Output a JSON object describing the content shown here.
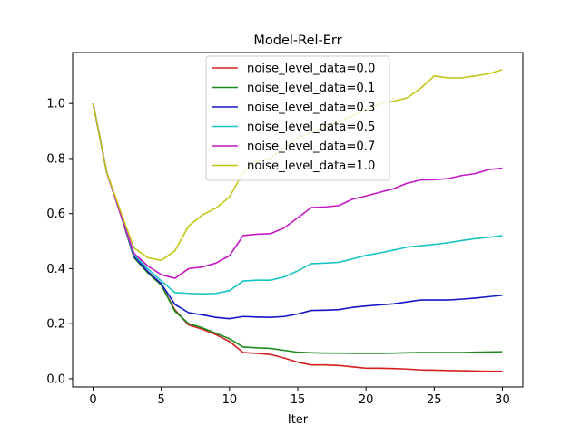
{
  "chart_data": {
    "type": "line",
    "title": "Model-Rel-Err",
    "xlabel": "Iter",
    "ylabel": "",
    "xlim": [
      -1.5,
      31.5
    ],
    "ylim": [
      -0.03,
      1.185
    ],
    "xticks": [
      0,
      5,
      10,
      15,
      20,
      25,
      30
    ],
    "xtick_labels": [
      "0",
      "5",
      "10",
      "15",
      "20",
      "25",
      "30"
    ],
    "yticks": [
      0.0,
      0.2,
      0.4,
      0.6,
      0.8,
      1.0
    ],
    "ytick_labels": [
      "0.0",
      "0.2",
      "0.4",
      "0.6",
      "0.8",
      "1.0"
    ],
    "grid": false,
    "legend_position": "top-center",
    "x": [
      0,
      1,
      2,
      3,
      4,
      5,
      6,
      7,
      8,
      9,
      10,
      11,
      12,
      13,
      14,
      15,
      16,
      17,
      18,
      19,
      20,
      21,
      22,
      23,
      24,
      25,
      26,
      27,
      28,
      29,
      30
    ],
    "series": [
      {
        "name": "noise_level_data=0.0",
        "color": "#d62020",
        "values": [
          1.0,
          0.75,
          0.6,
          0.44,
          0.385,
          0.34,
          0.25,
          0.195,
          0.18,
          0.16,
          0.135,
          0.095,
          0.092,
          0.088,
          0.075,
          0.06,
          0.05,
          0.05,
          0.048,
          0.043,
          0.038,
          0.038,
          0.037,
          0.035,
          0.032,
          0.031,
          0.03,
          0.029,
          0.028,
          0.027,
          0.027
        ]
      },
      {
        "name": "noise_level_data=0.1",
        "color": "#1a8a1a",
        "values": [
          1.0,
          0.75,
          0.6,
          0.44,
          0.385,
          0.34,
          0.245,
          0.2,
          0.185,
          0.165,
          0.145,
          0.115,
          0.112,
          0.11,
          0.103,
          0.096,
          0.094,
          0.093,
          0.093,
          0.092,
          0.092,
          0.092,
          0.093,
          0.094,
          0.095,
          0.095,
          0.095,
          0.095,
          0.096,
          0.097,
          0.098
        ]
      },
      {
        "name": "noise_level_data=0.3",
        "color": "#1515c8",
        "values": [
          1.0,
          0.75,
          0.6,
          0.445,
          0.39,
          0.345,
          0.27,
          0.24,
          0.232,
          0.223,
          0.218,
          0.226,
          0.224,
          0.223,
          0.226,
          0.235,
          0.248,
          0.249,
          0.251,
          0.259,
          0.264,
          0.268,
          0.272,
          0.279,
          0.286,
          0.286,
          0.286,
          0.289,
          0.293,
          0.298,
          0.303
        ]
      },
      {
        "name": "noise_level_data=0.5",
        "color": "#17c4c4",
        "values": [
          1.0,
          0.75,
          0.6,
          0.45,
          0.4,
          0.355,
          0.313,
          0.31,
          0.308,
          0.31,
          0.32,
          0.355,
          0.358,
          0.358,
          0.37,
          0.392,
          0.418,
          0.42,
          0.423,
          0.435,
          0.448,
          0.457,
          0.467,
          0.478,
          0.483,
          0.488,
          0.494,
          0.502,
          0.509,
          0.514,
          0.52
        ]
      },
      {
        "name": "noise_level_data=0.7",
        "color": "#c417c4",
        "values": [
          1.0,
          0.75,
          0.6,
          0.455,
          0.41,
          0.378,
          0.365,
          0.4,
          0.406,
          0.42,
          0.447,
          0.52,
          0.525,
          0.527,
          0.548,
          0.585,
          0.622,
          0.624,
          0.629,
          0.652,
          0.664,
          0.677,
          0.69,
          0.71,
          0.722,
          0.723,
          0.727,
          0.738,
          0.745,
          0.76,
          0.765
        ]
      },
      {
        "name": "noise_level_data=1.0",
        "color": "#c4c417",
        "values": [
          1.0,
          0.75,
          0.61,
          0.475,
          0.44,
          0.43,
          0.465,
          0.555,
          0.595,
          0.62,
          0.66,
          0.75,
          0.79,
          0.8,
          0.84,
          0.875,
          0.895,
          0.915,
          0.935,
          0.955,
          0.975,
          1.0,
          1.008,
          1.02,
          1.055,
          1.1,
          1.093,
          1.093,
          1.1,
          1.108,
          1.123
        ]
      }
    ]
  }
}
